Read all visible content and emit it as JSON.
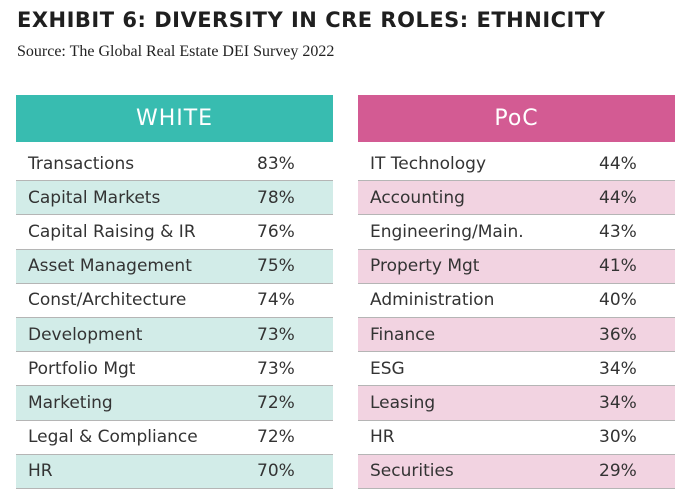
{
  "header": {
    "title": "EXHIBIT 6: DIVERSITY IN CRE ROLES: ETHNICITY",
    "source": "Source: The Global Real Estate DEI Survey 2022"
  },
  "colors": {
    "white_header": "#38bcb0",
    "white_stripe": "#d2ece8",
    "poc_header": "#d35b93",
    "poc_stripe": "#f2d3e1"
  },
  "white": {
    "heading": "WHITE",
    "rows": [
      {
        "label": "Transactions",
        "value": "83%"
      },
      {
        "label": "Capital Markets",
        "value": "78%"
      },
      {
        "label": "Capital Raising & IR",
        "value": "76%"
      },
      {
        "label": "Asset Management",
        "value": "75%"
      },
      {
        "label": "Const/Architecture",
        "value": "74%"
      },
      {
        "label": "Development",
        "value": "73%"
      },
      {
        "label": "Portfolio Mgt",
        "value": "73%"
      },
      {
        "label": "Marketing",
        "value": "72%"
      },
      {
        "label": "Legal & Compliance",
        "value": "72%"
      },
      {
        "label": "HR",
        "value": "70%"
      }
    ]
  },
  "poc": {
    "heading": "PoC",
    "rows": [
      {
        "label": "IT Technology",
        "value": "44%"
      },
      {
        "label": "Accounting",
        "value": "44%"
      },
      {
        "label": "Engineering/Main.",
        "value": "43%"
      },
      {
        "label": "Property Mgt",
        "value": "41%"
      },
      {
        "label": "Administration",
        "value": "40%"
      },
      {
        "label": "Finance",
        "value": "36%"
      },
      {
        "label": "ESG",
        "value": "34%"
      },
      {
        "label": "Leasing",
        "value": "34%"
      },
      {
        "label": "HR",
        "value": "30%"
      },
      {
        "label": "Securities",
        "value": "29%"
      }
    ]
  }
}
